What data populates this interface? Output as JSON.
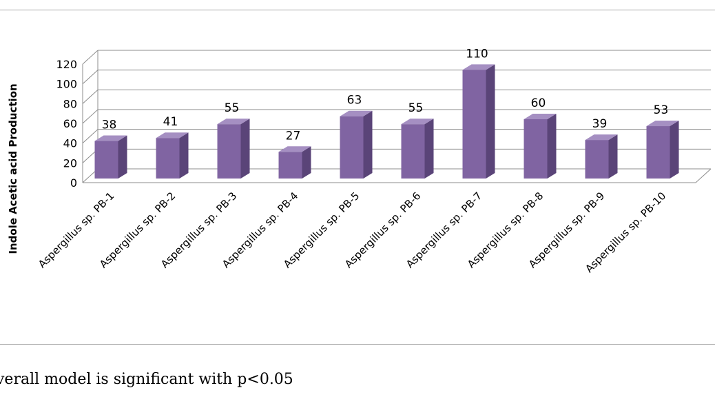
{
  "chart_data": {
    "type": "bar",
    "style": "3d-column",
    "categories": [
      "Aspergillus sp. PB-1",
      "Aspergillus sp. PB-2",
      "Aspergillus sp. PB-3",
      "Aspergillus sp. PB-4",
      "Aspergillus sp. PB-5",
      "Aspergillus sp. PB-6",
      "Aspergillus sp. PB-7",
      "Aspergillus sp. PB-8",
      "Aspergillus sp. PB-9",
      "Aspergillus sp. PB-10"
    ],
    "values": [
      38,
      41,
      55,
      27,
      63,
      55,
      110,
      60,
      39,
      53
    ],
    "title": "",
    "xlabel": "",
    "ylabel": "Indole Acetic acid Production",
    "ylim": [
      0,
      120
    ],
    "yticks": [
      0,
      20,
      40,
      60,
      80,
      100,
      120
    ],
    "grid": true,
    "legend": "none",
    "colors": {
      "bar_front": "#8064a2",
      "bar_side": "#5a4478",
      "bar_top": "#a58fc2",
      "grid": "#8c8c8c"
    }
  },
  "caption": "verall model is significant with p<0.05"
}
